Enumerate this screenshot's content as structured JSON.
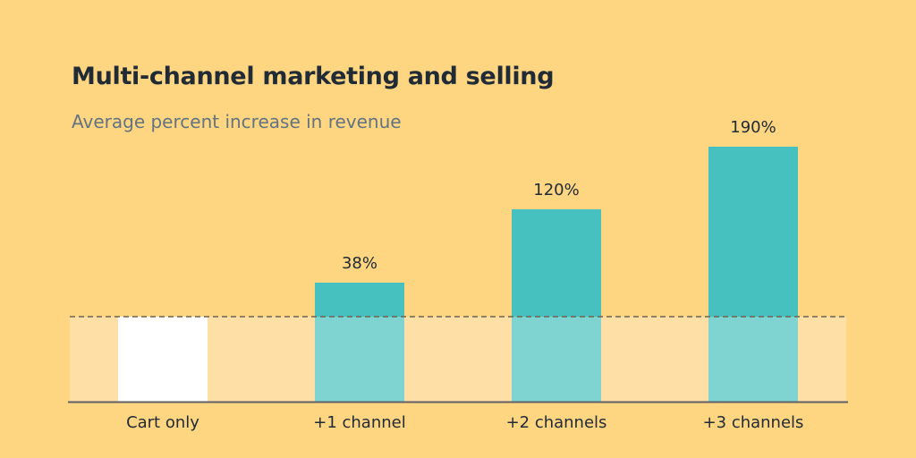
{
  "chart_data": {
    "type": "bar",
    "title": "Multi-channel marketing and selling",
    "subtitle": "Average percent increase in revenue",
    "categories": [
      "Cart only",
      "+1 channel",
      "+2 channels",
      "+3 channels"
    ],
    "values": [
      0,
      38,
      120,
      190
    ],
    "data_labels": [
      "",
      "38%",
      "120%",
      "190%"
    ],
    "unit": "%",
    "baseline_reference": "dashed line at cart-only level",
    "grid": false,
    "legend": "none",
    "colors": {
      "background": "#FED580",
      "baseline_band": "#FEDFA5",
      "cart_only_bar": "#FFFFFF",
      "increase_bar": "#47C1BF",
      "increase_bar_lower": "#7FD4D2",
      "title": "#212B36",
      "subtitle": "#637381"
    }
  }
}
